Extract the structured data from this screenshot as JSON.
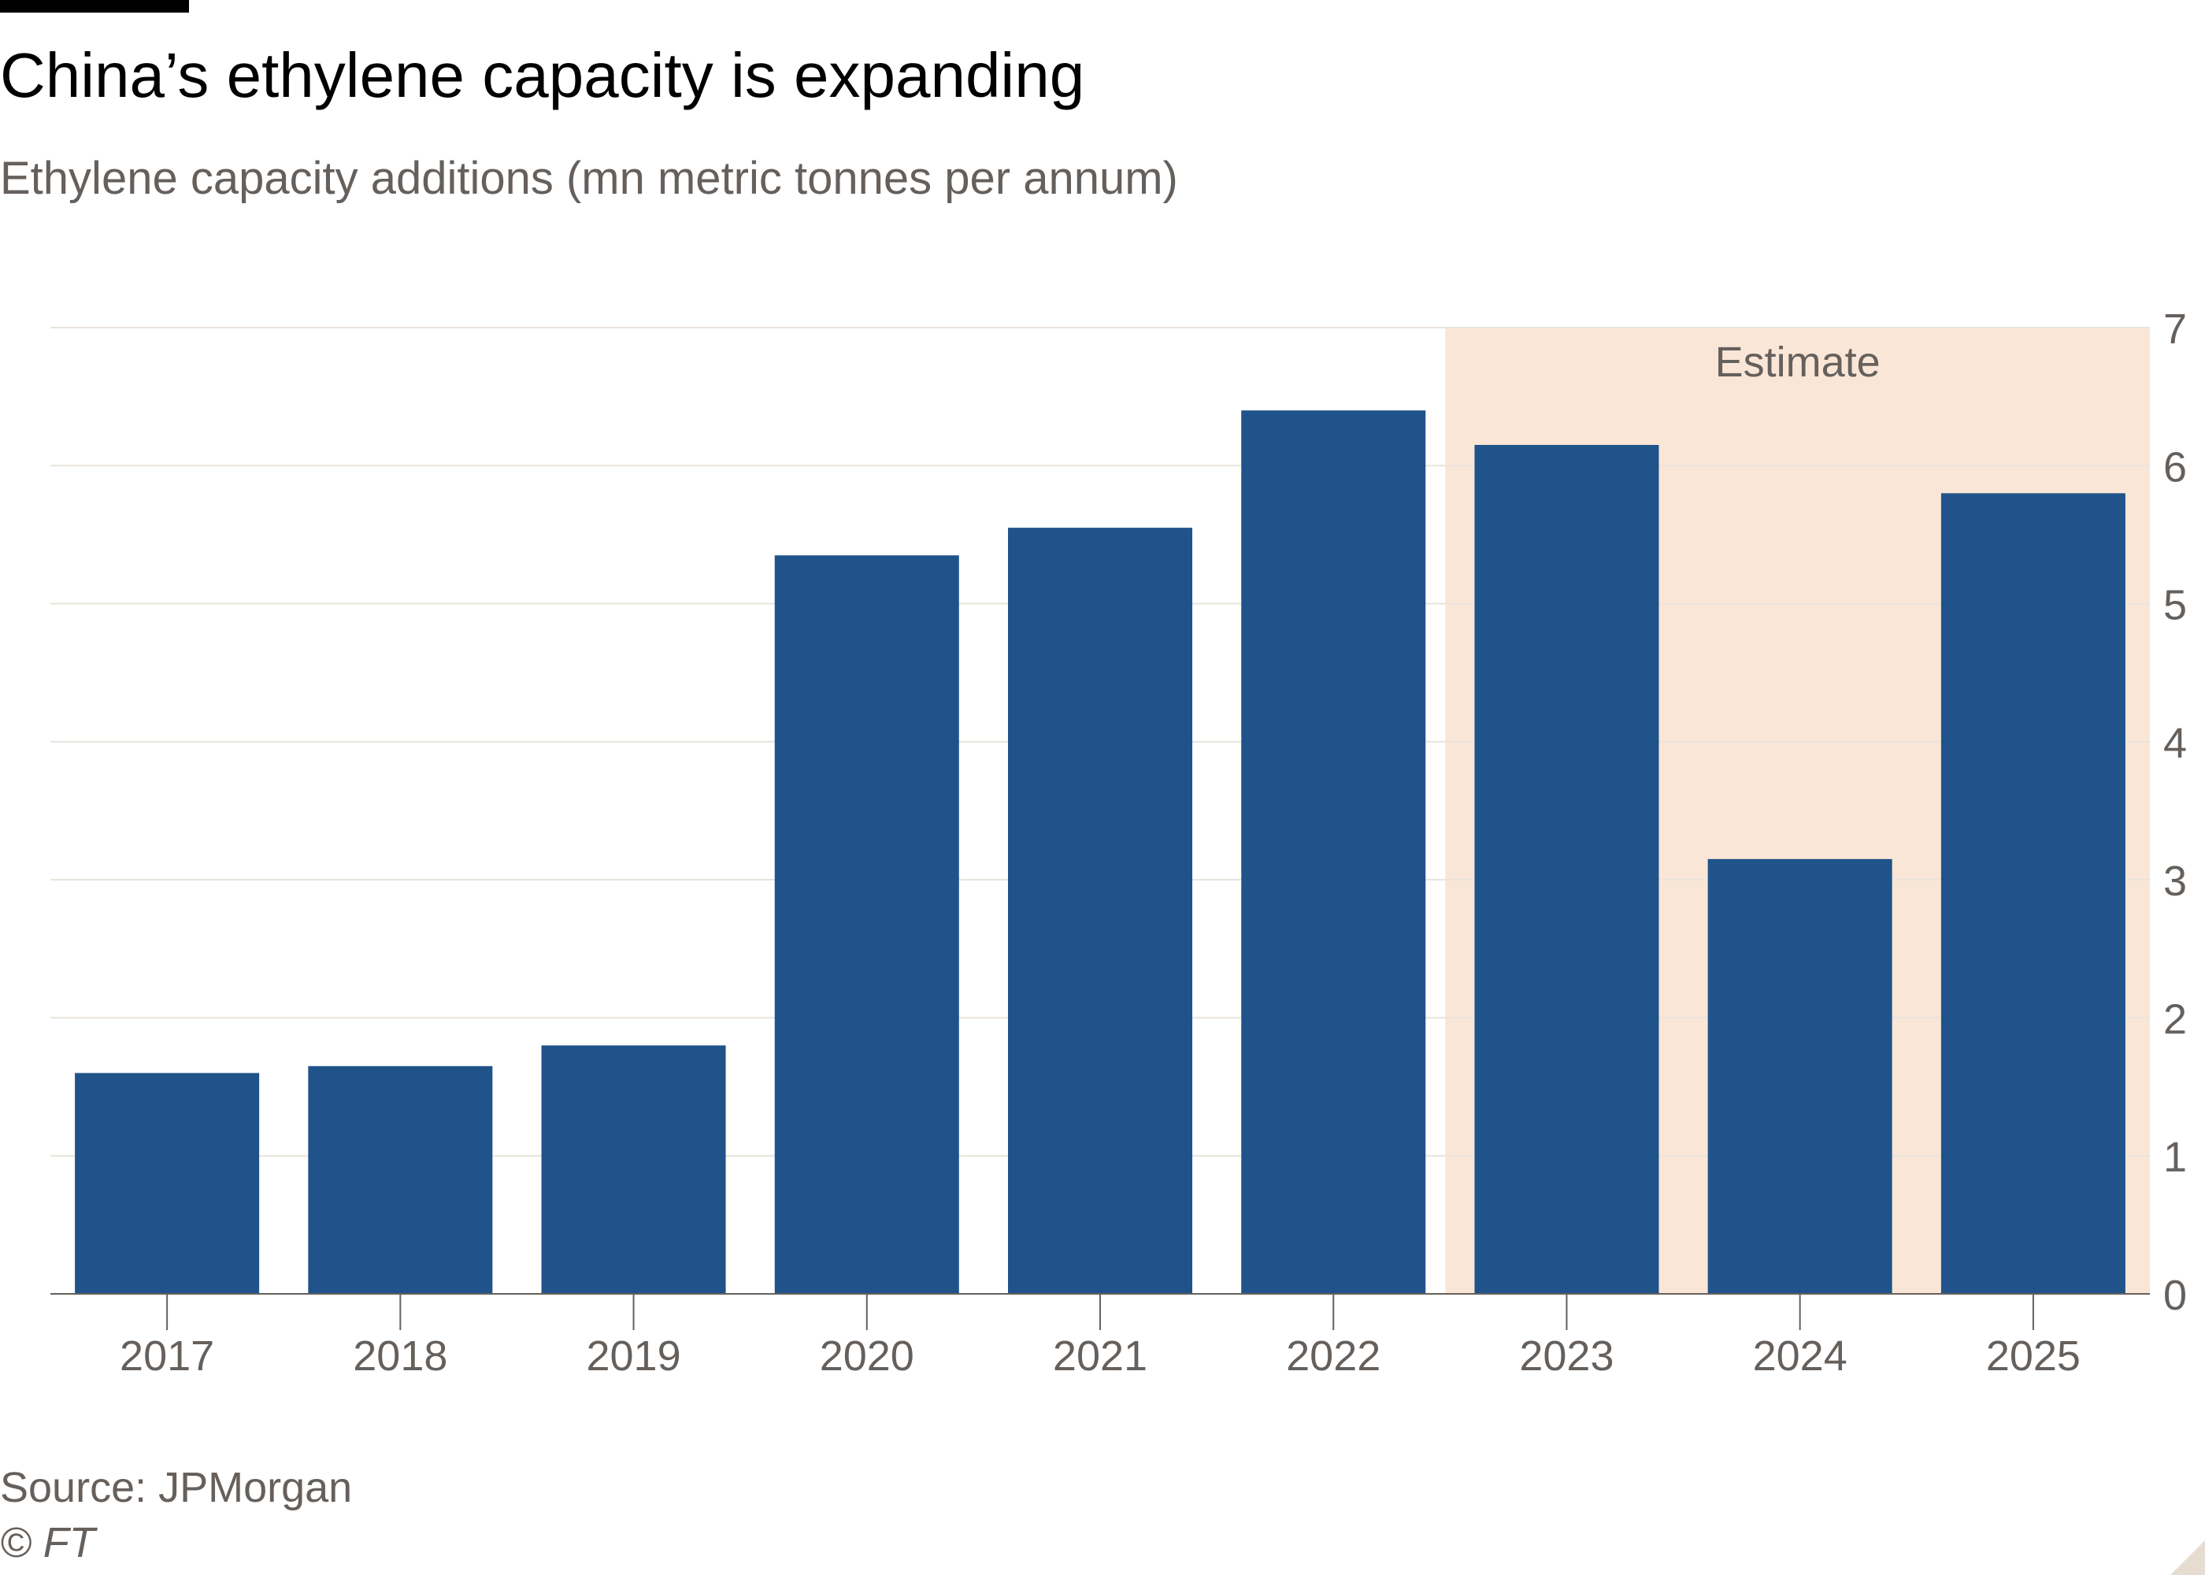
{
  "header": {
    "title": "China’s ethylene capacity is expanding",
    "subtitle": "Ethylene capacity additions (mn metric tonnes per annum)"
  },
  "footer": {
    "source": "Source: JPMorgan",
    "copyright": "© FT"
  },
  "colors": {
    "bar": "#20538a",
    "estimate_band": "#fae6d7",
    "gridline": "#e9e3dc",
    "axis": "#66605c",
    "text": "#000000"
  },
  "chart_data": {
    "type": "bar",
    "categories": [
      "2017",
      "2018",
      "2019",
      "2020",
      "2021",
      "2022",
      "2023",
      "2024",
      "2025"
    ],
    "values": [
      1.6,
      1.65,
      1.8,
      5.35,
      5.55,
      6.4,
      6.15,
      3.15,
      5.8
    ],
    "title": "China’s ethylene capacity is expanding",
    "subtitle": "Ethylene capacity additions (mn metric tonnes per annum)",
    "xlabel": "",
    "ylabel": "",
    "ylim": [
      0,
      7
    ],
    "yticks": [
      0,
      1,
      2,
      3,
      4,
      5,
      6,
      7
    ],
    "y_axis_side": "right",
    "grid": true,
    "legend": "none",
    "annotations": [
      {
        "label": "Estimate",
        "categories": [
          "2023",
          "2024",
          "2025"
        ]
      }
    ]
  }
}
